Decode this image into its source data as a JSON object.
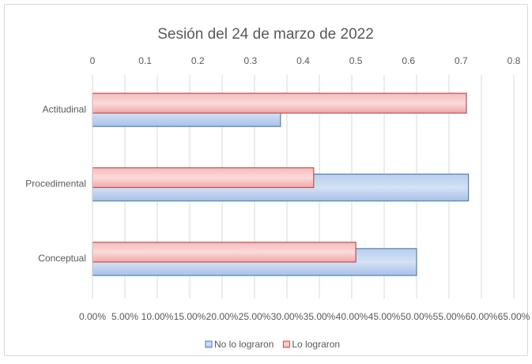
{
  "chart_data": {
    "type": "hbar",
    "title": "Sesión del 24 de marzo de 2022",
    "categories": [
      "Actitudinal",
      "Procedimental",
      "Conceptual"
    ],
    "series": [
      {
        "name": "No lo lograron",
        "color": "#4f81bd",
        "values": [
          29,
          58,
          50
        ]
      },
      {
        "name": "Lo lograron",
        "color": "#c0504d",
        "axis": "x2",
        "values": [
          0.71,
          0.42,
          0.5
        ]
      }
    ],
    "xlim": [
      0,
      65
    ],
    "xticks": [
      {
        "value": 0,
        "label": "0.00%"
      },
      {
        "value": 5,
        "label": "5.00%"
      },
      {
        "value": 10,
        "label": "10.00%"
      },
      {
        "value": 15,
        "label": "15.00%"
      },
      {
        "value": 20,
        "label": "20.00%"
      },
      {
        "value": 25,
        "label": "25.00%"
      },
      {
        "value": 30,
        "label": "30.00%"
      },
      {
        "value": 35,
        "label": "35.00%"
      },
      {
        "value": 40,
        "label": "40.00%"
      },
      {
        "value": 45,
        "label": "45.00%"
      },
      {
        "value": 50,
        "label": "50.00%"
      },
      {
        "value": 55,
        "label": "55.00%"
      },
      {
        "value": 60,
        "label": "60.00%"
      },
      {
        "value": 65,
        "label": "65.00%"
      }
    ],
    "x2lim": [
      0,
      0.8
    ],
    "x2ticks": [
      0,
      0.1,
      0.2,
      0.3,
      0.4,
      0.5,
      0.6,
      0.7,
      0.8
    ],
    "grid": true,
    "legend": "bottom"
  }
}
